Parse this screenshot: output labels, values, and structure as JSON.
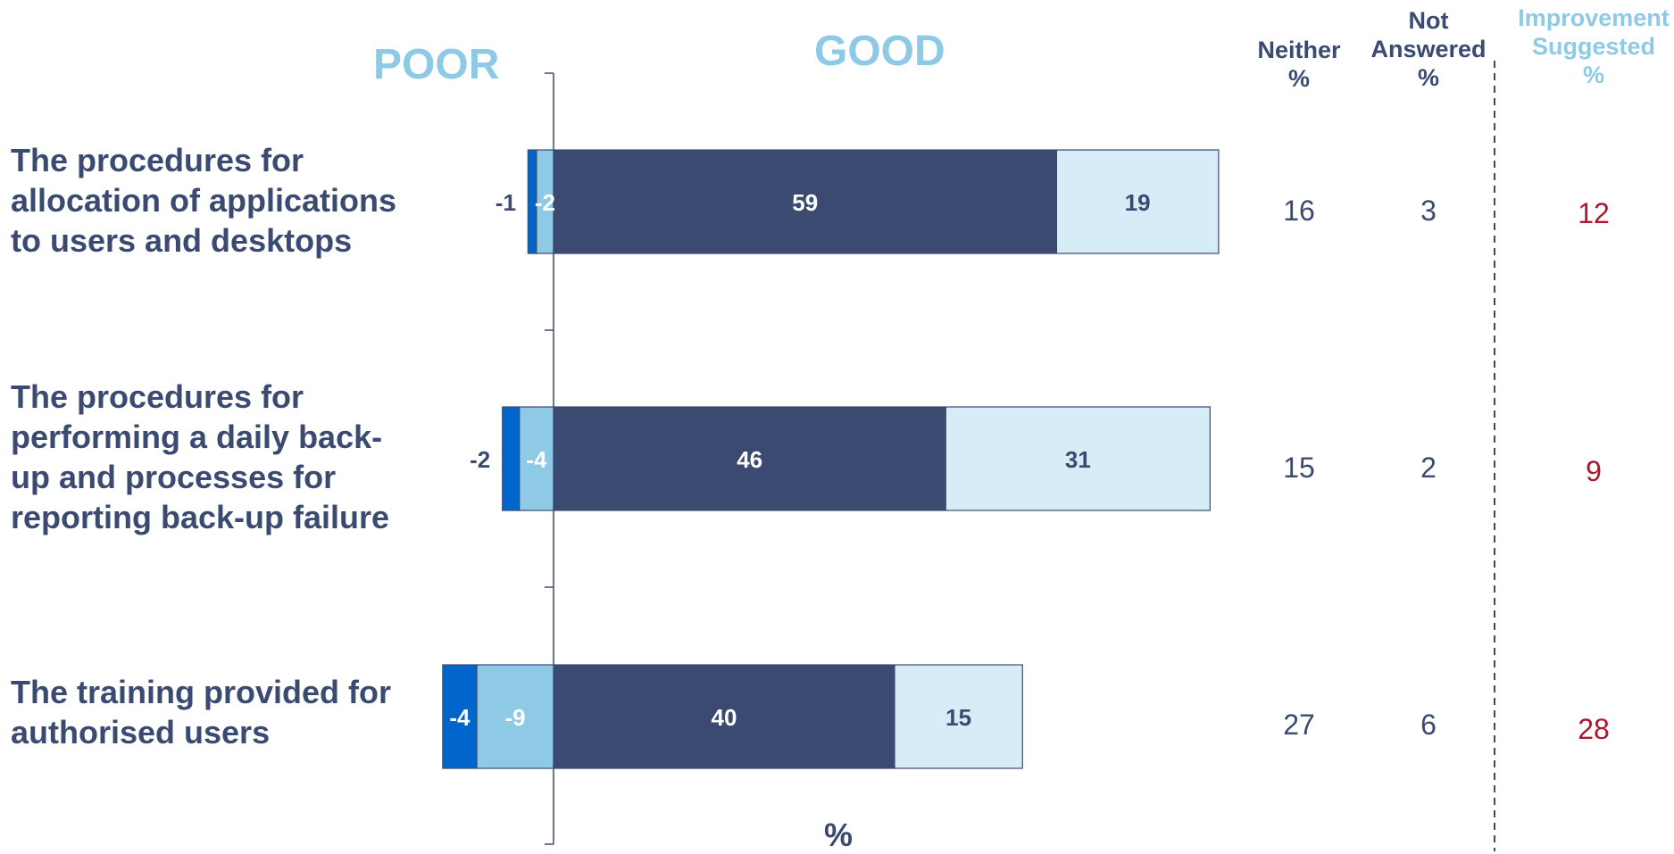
{
  "poor_label": "POOR",
  "good_label": "GOOD",
  "x_unit_label": "%",
  "columns": {
    "neither": {
      "lines": [
        "Neither",
        "%"
      ]
    },
    "not_answered": {
      "lines": [
        "Not",
        "Answered",
        "%"
      ]
    },
    "improvement": {
      "lines": [
        "Improvement",
        "Suggested",
        "%"
      ]
    }
  },
  "colors": {
    "very_poor": "#0066cc",
    "poor": "#8ecae6",
    "good": "#3b4a70",
    "very_good": "#d6ecf6",
    "text_dark": "#3b4a70",
    "text_light": "#ffffff",
    "header_light": "#8ecae6",
    "improvement_value": "#a6192e",
    "value_text": "#3b4a70"
  },
  "chart_data": {
    "type": "bar",
    "orientation": "horizontal-diverging-stacked",
    "categories": [
      "The procedures for allocation of applications to users and desktops",
      "The procedures for performing a daily back-up and processes for reporting back-up failure",
      "The training provided for authorised users"
    ],
    "category_lines": [
      [
        "The procedures for",
        "allocation of applications",
        "to users and desktops"
      ],
      [
        "The procedures for",
        "performing a daily back-",
        "up and processes for",
        "reporting back-up failure"
      ],
      [
        "The training provided for",
        "authorised users"
      ]
    ],
    "series": [
      {
        "key": "very_poor",
        "values": [
          -1,
          -2,
          -4
        ]
      },
      {
        "key": "poor",
        "values": [
          -2,
          -4,
          -9
        ]
      },
      {
        "key": "good",
        "values": [
          59,
          46,
          40
        ]
      },
      {
        "key": "very_good",
        "values": [
          19,
          31,
          15
        ]
      }
    ],
    "neither": [
      16,
      15,
      27
    ],
    "not_answered": [
      3,
      2,
      6
    ],
    "improvement_suggested": [
      12,
      9,
      28
    ],
    "xlabel": "%"
  }
}
